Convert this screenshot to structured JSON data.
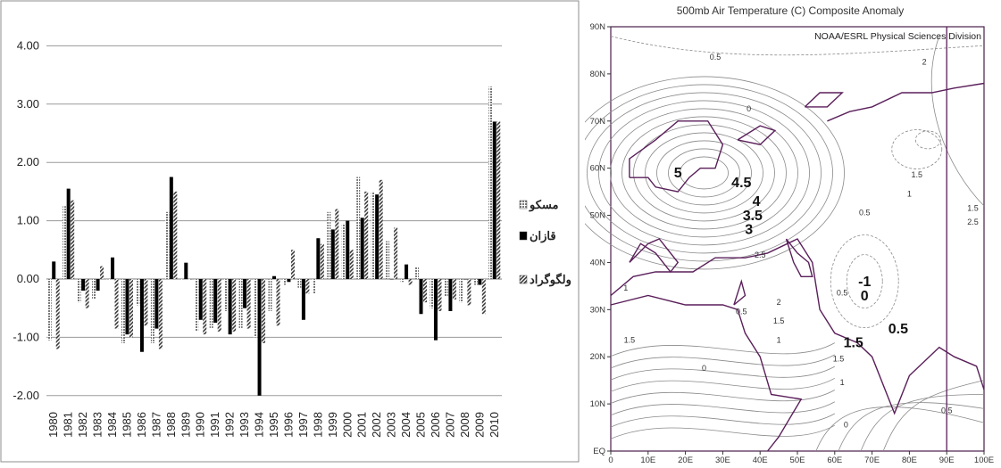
{
  "chart_data": [
    {
      "type": "bar",
      "title": "",
      "xlabel": "",
      "ylabel": "",
      "ylim": [
        -2,
        4
      ],
      "y_ticks": [
        "4.00",
        "3.00",
        "2.00",
        "1.00",
        "0.00",
        "-1.00",
        "-2.00"
      ],
      "categories": [
        "1980",
        "1981",
        "1982",
        "1983",
        "1984",
        "1985",
        "1986",
        "1987",
        "1988",
        "1989",
        "1990",
        "1991",
        "1992",
        "1993",
        "1994",
        "1995",
        "1996",
        "1997",
        "1998",
        "1999",
        "2000",
        "2001",
        "2002",
        "2003",
        "2004",
        "2005",
        "2006",
        "2007",
        "2008",
        "2009",
        "2010"
      ],
      "series": [
        {
          "name": "مسکو",
          "color": "#8a8a8a",
          "values": [
            -1.05,
            1.25,
            -0.4,
            -0.35,
            0.0,
            -1.1,
            -0.45,
            -1.1,
            1.15,
            0.0,
            -0.9,
            -0.85,
            -0.55,
            -0.85,
            -1.0,
            -0.55,
            -0.1,
            -0.15,
            -0.25,
            1.15,
            0.95,
            1.75,
            1.5,
            0.65,
            -0.05,
            0.2,
            -0.5,
            -0.3,
            -0.4,
            -0.1,
            3.3
          ]
        },
        {
          "name": "قازان",
          "color": "#000000",
          "values": [
            0.3,
            1.55,
            -0.2,
            -0.2,
            0.37,
            -0.95,
            -1.25,
            -0.85,
            1.75,
            0.28,
            -0.7,
            -0.75,
            -0.95,
            -0.5,
            -2.0,
            0.05,
            -0.05,
            -0.7,
            0.7,
            0.85,
            1.0,
            1.05,
            1.45,
            0.0,
            0.25,
            -0.6,
            -1.05,
            -0.55,
            0.0,
            -0.1,
            2.7
          ]
        },
        {
          "name": "ولگوگراد",
          "color": "#555555",
          "values": [
            -1.2,
            1.35,
            -0.5,
            0.22,
            -0.85,
            -1.0,
            -0.8,
            -1.2,
            1.5,
            0.0,
            -0.95,
            -0.9,
            -0.9,
            -0.85,
            -1.1,
            -0.8,
            0.5,
            -0.25,
            0.6,
            1.2,
            0.5,
            1.5,
            1.7,
            0.88,
            -0.1,
            -0.4,
            -0.55,
            -0.35,
            -0.45,
            -0.6,
            2.7
          ]
        }
      ],
      "legend_position": "right",
      "grid": true
    },
    {
      "type": "contour-map",
      "title": "500mb Air Temperature (C) Composite Anomaly",
      "annotation": "NOAA/ESRL Physical Sciences Division",
      "x_ticks": [
        "0",
        "10E",
        "20E",
        "30E",
        "40E",
        "50E",
        "60E",
        "70E",
        "80E",
        "90E",
        "100E"
      ],
      "y_ticks": [
        "EQ",
        "10N",
        "20N",
        "30N",
        "40N",
        "50N",
        "60N",
        "70N",
        "80N",
        "90N"
      ],
      "xlim": [
        0,
        100
      ],
      "ylim": [
        0,
        90
      ],
      "highlight_line_lon": 90,
      "bold_labels": [
        {
          "text": "5",
          "lon": 18,
          "lat": 58
        },
        {
          "text": "4.5",
          "lon": 35,
          "lat": 56
        },
        {
          "text": "4",
          "lon": 39,
          "lat": 52
        },
        {
          "text": "3.5",
          "lon": 38,
          "lat": 49
        },
        {
          "text": "3",
          "lon": 37,
          "lat": 46
        },
        {
          "text": "-1",
          "lon": 68,
          "lat": 35
        },
        {
          "text": "0",
          "lon": 68,
          "lat": 32
        },
        {
          "text": "0.5",
          "lon": 77,
          "lat": 25
        },
        {
          "text": "1.5",
          "lon": 65,
          "lat": 22
        }
      ],
      "small_labels": [
        {
          "text": "0.5",
          "lon": 28,
          "lat": 83
        },
        {
          "text": "2",
          "lon": 84,
          "lat": 82
        },
        {
          "text": "0",
          "lon": 37,
          "lat": 72
        },
        {
          "text": "1.5",
          "lon": 82,
          "lat": 58
        },
        {
          "text": "1",
          "lon": 80,
          "lat": 54
        },
        {
          "text": "0.5",
          "lon": 68,
          "lat": 50
        },
        {
          "text": "1.5",
          "lon": 97,
          "lat": 51
        },
        {
          "text": "2.5",
          "lon": 97,
          "lat": 48
        },
        {
          "text": "2.5",
          "lon": 40,
          "lat": 41
        },
        {
          "text": "1",
          "lon": 4,
          "lat": 34
        },
        {
          "text": "2",
          "lon": 45,
          "lat": 31
        },
        {
          "text": "0.5",
          "lon": 35,
          "lat": 29
        },
        {
          "text": "1.5",
          "lon": 45,
          "lat": 27
        },
        {
          "text": "0.5",
          "lon": 62,
          "lat": 33
        },
        {
          "text": "1.5",
          "lon": 5,
          "lat": 23
        },
        {
          "text": "1",
          "lon": 45,
          "lat": 23
        },
        {
          "text": "1.5",
          "lon": 61,
          "lat": 19
        },
        {
          "text": "0",
          "lon": 25,
          "lat": 17
        },
        {
          "text": "1",
          "lon": 62,
          "lat": 14
        },
        {
          "text": "0.5",
          "lon": 90,
          "lat": 8
        },
        {
          "text": "0",
          "lon": 63,
          "lat": 5
        }
      ]
    }
  ]
}
